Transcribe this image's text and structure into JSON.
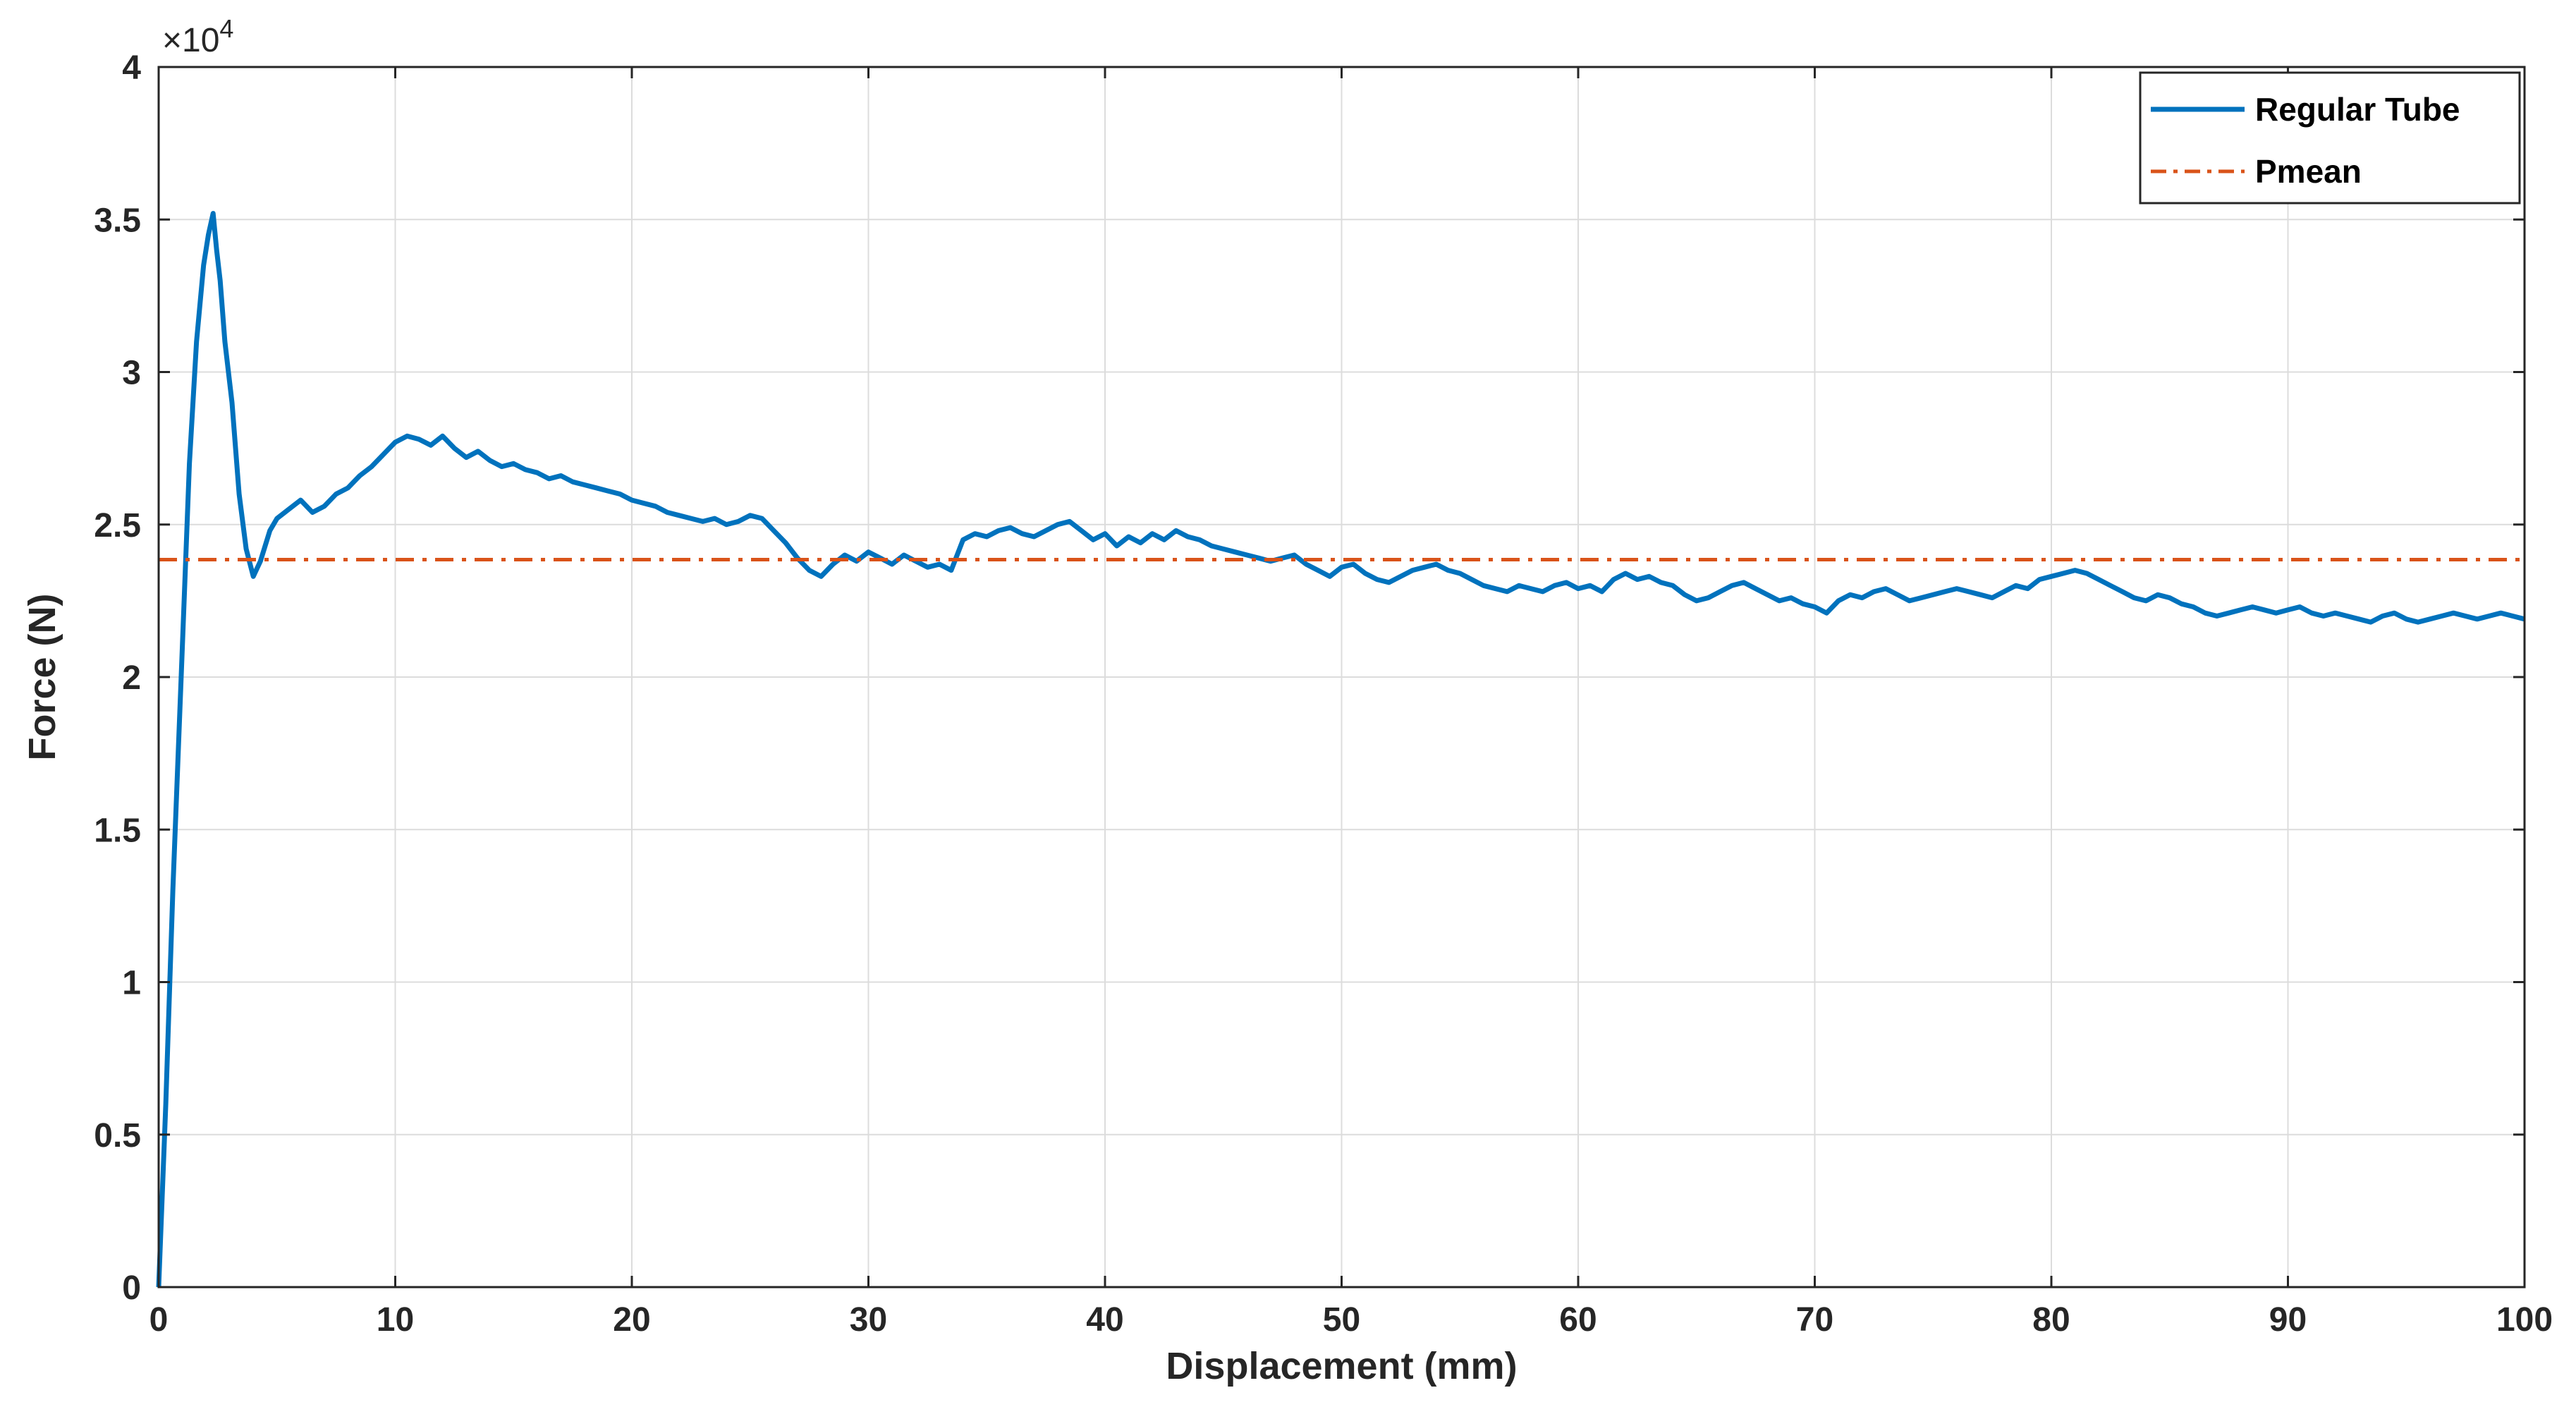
{
  "chart_data": {
    "type": "line",
    "xlabel": "Displacement (mm)",
    "ylabel": "Force (N)",
    "y_exponent_label": {
      "multiplier": "×10",
      "power": "4"
    },
    "xlim": [
      0,
      100
    ],
    "ylim": [
      0,
      40000
    ],
    "x_ticks": [
      0,
      10,
      20,
      30,
      40,
      50,
      60,
      70,
      80,
      90,
      100
    ],
    "x_tick_labels": [
      "0",
      "10",
      "20",
      "30",
      "40",
      "50",
      "60",
      "70",
      "80",
      "90",
      "100"
    ],
    "y_ticks": [
      0,
      5000,
      10000,
      15000,
      20000,
      25000,
      30000,
      35000,
      40000
    ],
    "y_tick_labels": [
      "0",
      "0.5",
      "1",
      "1.5",
      "2",
      "2.5",
      "3",
      "3.5",
      "4"
    ],
    "grid": true,
    "legend_position": "top-right",
    "series": [
      {
        "name": "Regular Tube",
        "color": "#0072BD",
        "line_style": "solid",
        "x": [
          0,
          0.3,
          0.6,
          1.0,
          1.3,
          1.6,
          1.9,
          2.1,
          2.3,
          2.45,
          2.6,
          2.8,
          3.1,
          3.4,
          3.7,
          4.0,
          4.3,
          4.7,
          5.0,
          5.5,
          6.0,
          6.5,
          7.0,
          7.5,
          8.0,
          8.5,
          9.0,
          9.5,
          10.0,
          10.5,
          11.0,
          11.5,
          12.0,
          12.5,
          13.0,
          13.5,
          14.0,
          14.5,
          15.0,
          15.5,
          16.0,
          16.5,
          17.0,
          17.5,
          18.0,
          18.5,
          19.0,
          19.5,
          20.0,
          20.5,
          21.0,
          21.5,
          22.0,
          22.5,
          23.0,
          23.5,
          24.0,
          24.5,
          25.0,
          25.5,
          26.0,
          26.5,
          27.0,
          27.5,
          28.0,
          28.5,
          29.0,
          29.5,
          30.0,
          30.5,
          31.0,
          31.5,
          32.0,
          32.5,
          33.0,
          33.5,
          34.0,
          34.5,
          35.0,
          35.5,
          36.0,
          36.5,
          37.0,
          37.5,
          38.0,
          38.5,
          39.0,
          39.5,
          40.0,
          40.5,
          41.0,
          41.5,
          42.0,
          42.5,
          43.0,
          43.5,
          44.0,
          44.5,
          45.0,
          45.5,
          46.0,
          46.5,
          47.0,
          47.5,
          48.0,
          48.5,
          49.0,
          49.5,
          50.0,
          50.5,
          51.0,
          51.5,
          52.0,
          52.5,
          53.0,
          53.5,
          54.0,
          54.5,
          55.0,
          55.5,
          56.0,
          56.5,
          57.0,
          57.5,
          58.0,
          58.5,
          59.0,
          59.5,
          60.0,
          60.5,
          61.0,
          61.5,
          62.0,
          62.5,
          63.0,
          63.5,
          64.0,
          64.5,
          65.0,
          65.5,
          66.0,
          66.5,
          67.0,
          67.5,
          68.0,
          68.5,
          69.0,
          69.5,
          70.0,
          70.5,
          71.0,
          71.5,
          72.0,
          72.5,
          73.0,
          73.5,
          74.0,
          74.5,
          75.0,
          75.5,
          76.0,
          76.5,
          77.0,
          77.5,
          78.0,
          78.5,
          79.0,
          79.5,
          80.0,
          80.5,
          81.0,
          81.5,
          82.0,
          82.5,
          83.0,
          83.5,
          84.0,
          84.5,
          85.0,
          85.5,
          86.0,
          86.5,
          87.0,
          87.5,
          88.0,
          88.5,
          89.0,
          89.5,
          90.0,
          90.5,
          91.0,
          91.5,
          92.0,
          92.5,
          93.0,
          93.5,
          94.0,
          94.5,
          95.0,
          95.5,
          96.0,
          96.5,
          97.0,
          97.5,
          98.0,
          98.5,
          99.0,
          99.5,
          100.0
        ],
        "y": [
          0,
          6000,
          13000,
          21000,
          27000,
          31000,
          33500,
          34500,
          35200,
          34000,
          33000,
          31000,
          29000,
          26000,
          24200,
          23300,
          23800,
          24800,
          25200,
          25500,
          25800,
          25400,
          25600,
          26000,
          26200,
          26600,
          26900,
          27300,
          27700,
          27900,
          27800,
          27600,
          27900,
          27500,
          27200,
          27400,
          27100,
          26900,
          27000,
          26800,
          26700,
          26500,
          26600,
          26400,
          26300,
          26200,
          26100,
          26000,
          25800,
          25700,
          25600,
          25400,
          25300,
          25200,
          25100,
          25200,
          25000,
          25100,
          25300,
          25200,
          24800,
          24400,
          23900,
          23500,
          23300,
          23700,
          24000,
          23800,
          24100,
          23900,
          23700,
          24000,
          23800,
          23600,
          23700,
          23500,
          24500,
          24700,
          24600,
          24800,
          24900,
          24700,
          24600,
          24800,
          25000,
          25100,
          24800,
          24500,
          24700,
          24300,
          24600,
          24400,
          24700,
          24500,
          24800,
          24600,
          24500,
          24300,
          24200,
          24100,
          24000,
          23900,
          23800,
          23900,
          24000,
          23700,
          23500,
          23300,
          23600,
          23700,
          23400,
          23200,
          23100,
          23300,
          23500,
          23600,
          23700,
          23500,
          23400,
          23200,
          23000,
          22900,
          22800,
          23000,
          22900,
          22800,
          23000,
          23100,
          22900,
          23000,
          22800,
          23200,
          23400,
          23200,
          23300,
          23100,
          23000,
          22700,
          22500,
          22600,
          22800,
          23000,
          23100,
          22900,
          22700,
          22500,
          22600,
          22400,
          22300,
          22100,
          22500,
          22700,
          22600,
          22800,
          22900,
          22700,
          22500,
          22600,
          22700,
          22800,
          22900,
          22800,
          22700,
          22600,
          22800,
          23000,
          22900,
          23200,
          23300,
          23400,
          23500,
          23400,
          23200,
          23000,
          22800,
          22600,
          22500,
          22700,
          22600,
          22400,
          22300,
          22100,
          22000,
          22100,
          22200,
          22300,
          22200,
          22100,
          22200,
          22300,
          22100,
          22000,
          22100,
          22000,
          21900,
          21800,
          22000,
          22100,
          21900,
          21800,
          21900,
          22000,
          22100,
          22000,
          21900,
          22000,
          22100,
          22000,
          21900
        ]
      },
      {
        "name": "Pmean",
        "color": "#D95319",
        "line_style": "dash-dot",
        "x": [
          0,
          100
        ],
        "y": [
          23850,
          23850
        ]
      }
    ]
  }
}
